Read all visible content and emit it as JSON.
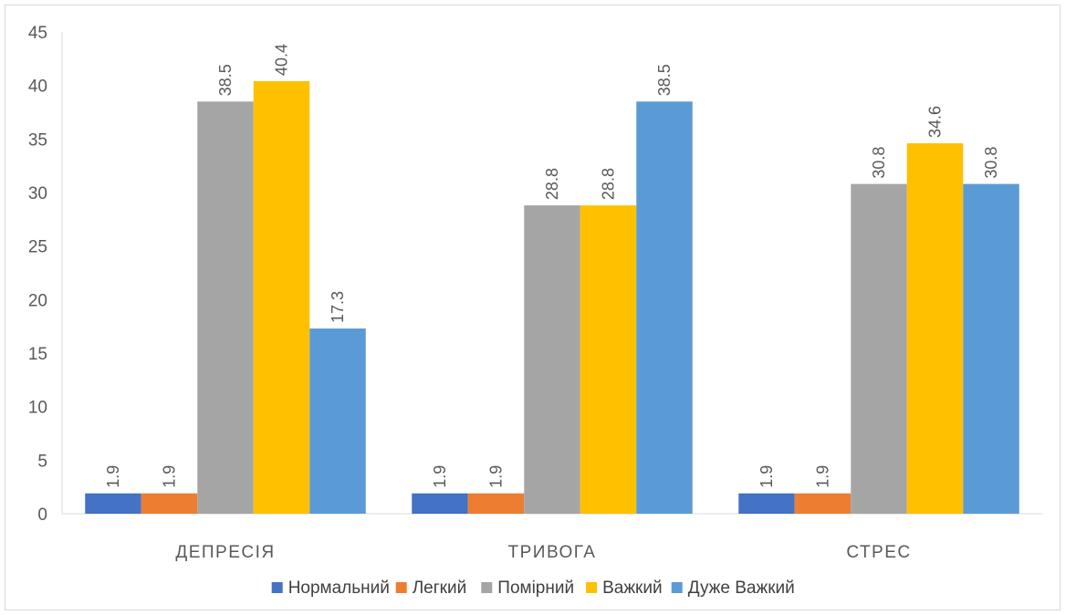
{
  "chart_data": {
    "type": "bar",
    "title": "",
    "xlabel": "",
    "ylabel": "",
    "ylim": [
      0,
      45
    ],
    "yticks": [
      0,
      5,
      10,
      15,
      20,
      25,
      30,
      35,
      40,
      45
    ],
    "grid": false,
    "legend_position": "bottom",
    "categories": [
      "ДЕПРЕСІЯ",
      "ТРИВОГА",
      "СТРЕС"
    ],
    "series": [
      {
        "name": "Нормальний",
        "color": "#4472c4",
        "values": [
          1.9,
          1.9,
          1.9
        ]
      },
      {
        "name": "Легкий",
        "color": "#ed7d31",
        "values": [
          1.9,
          1.9,
          1.9
        ]
      },
      {
        "name": "Помірний",
        "color": "#a5a5a5",
        "values": [
          38.5,
          28.8,
          30.8
        ]
      },
      {
        "name": "Важкий",
        "color": "#ffc000",
        "values": [
          40.4,
          28.8,
          34.6
        ]
      },
      {
        "name": "Дуже Важкий",
        "color": "#5b9bd5",
        "values": [
          17.3,
          38.5,
          30.8
        ]
      }
    ]
  }
}
